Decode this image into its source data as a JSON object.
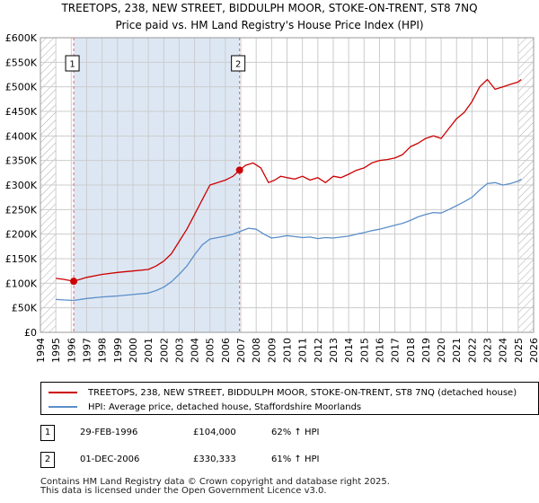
{
  "title": {
    "line1": "TREETOPS, 238, NEW STREET, BIDDULPH MOOR, STOKE-ON-TRENT, ST8 7NQ",
    "line2": "Price paid vs. HM Land Registry's House Price Index (HPI)"
  },
  "colors": {
    "property": "#cc0000",
    "hpi": "#5b8fc9",
    "shade": "#dde7f4",
    "grid": "#cccccc",
    "vline": "#e06666",
    "hatch": "#aaaaaa"
  },
  "chart_data": {
    "type": "line",
    "title": "Price paid vs. HM Land Registry's House Price Index (HPI)",
    "xlabel": "",
    "ylabel": "",
    "xlim": [
      1994,
      2026
    ],
    "ylim": [
      0,
      600000
    ],
    "x_ticks": [
      1994,
      1995,
      1996,
      1997,
      1998,
      1999,
      2000,
      2001,
      2002,
      2003,
      2004,
      2005,
      2006,
      2007,
      2008,
      2009,
      2010,
      2011,
      2012,
      2013,
      2014,
      2015,
      2016,
      2017,
      2018,
      2019,
      2020,
      2021,
      2022,
      2023,
      2024,
      2025,
      2026
    ],
    "y_ticks": [
      0,
      50000,
      100000,
      150000,
      200000,
      250000,
      300000,
      350000,
      400000,
      450000,
      500000,
      550000,
      600000
    ],
    "y_tick_labels": [
      "£0",
      "£50K",
      "£100K",
      "£150K",
      "£200K",
      "£250K",
      "£300K",
      "£350K",
      "£400K",
      "£450K",
      "£500K",
      "£550K",
      "£600K"
    ],
    "grid": true,
    "shaded_range": [
      1996.16,
      2006.92
    ],
    "hatched_ranges": [
      [
        1994,
        1995
      ],
      [
        2025,
        2026
      ]
    ],
    "series": [
      {
        "name": "TREETOPS, 238, NEW STREET, BIDDULPH MOOR, STOKE-ON-TRENT, ST8 7NQ (detached house)",
        "x": [
          1995.0,
          1995.5,
          1996.16,
          1997,
          1998,
          1999,
          2000,
          2001,
          2001.5,
          2002,
          2002.5,
          2003,
          2003.5,
          2004,
          2004.5,
          2005,
          2005.5,
          2006,
          2006.5,
          2006.92,
          2007.3,
          2007.8,
          2008.3,
          2008.8,
          2009.2,
          2009.6,
          2010,
          2010.5,
          2011,
          2011.5,
          2012,
          2012.5,
          2013,
          2013.5,
          2014,
          2014.5,
          2015,
          2015.5,
          2016,
          2016.5,
          2017,
          2017.5,
          2018,
          2018.5,
          2019,
          2019.5,
          2020,
          2020.5,
          2021,
          2021.5,
          2022,
          2022.5,
          2023,
          2023.5,
          2024,
          2024.5,
          2025.0,
          2025.2
        ],
        "values": [
          110000,
          108000,
          104000,
          112000,
          118000,
          122000,
          125000,
          128000,
          135000,
          145000,
          160000,
          185000,
          210000,
          240000,
          270000,
          300000,
          305000,
          310000,
          318000,
          330333,
          340000,
          345000,
          335000,
          305000,
          310000,
          318000,
          315000,
          312000,
          318000,
          310000,
          315000,
          305000,
          318000,
          315000,
          322000,
          330000,
          335000,
          345000,
          350000,
          352000,
          355000,
          362000,
          378000,
          385000,
          395000,
          400000,
          395000,
          415000,
          435000,
          448000,
          470000,
          500000,
          515000,
          495000,
          500000,
          505000,
          510000,
          515000
        ]
      },
      {
        "name": "HPI: Average price, detached house, Staffordshire Moorlands",
        "x": [
          1995.0,
          1995.5,
          1996.16,
          1997,
          1998,
          1999,
          2000,
          2001,
          2001.5,
          2002,
          2002.5,
          2003,
          2003.5,
          2004,
          2004.5,
          2005,
          2005.5,
          2006,
          2006.5,
          2006.92,
          2007.5,
          2008,
          2008.5,
          2009,
          2009.5,
          2010,
          2010.5,
          2011,
          2011.5,
          2012,
          2012.5,
          2013,
          2013.5,
          2014,
          2014.5,
          2015,
          2015.5,
          2016,
          2016.5,
          2017,
          2017.5,
          2018,
          2018.5,
          2019,
          2019.5,
          2020,
          2020.5,
          2021,
          2021.5,
          2022,
          2022.5,
          2023,
          2023.5,
          2024,
          2024.5,
          2025.0,
          2025.2
        ],
        "values": [
          67000,
          66000,
          65000,
          69000,
          72000,
          74000,
          77000,
          80000,
          85000,
          92000,
          103000,
          118000,
          135000,
          158000,
          178000,
          190000,
          193000,
          196000,
          200000,
          205000,
          212000,
          210000,
          200000,
          192000,
          194000,
          197000,
          195000,
          193000,
          194000,
          191000,
          193000,
          192000,
          194000,
          196000,
          200000,
          203000,
          207000,
          210000,
          214000,
          218000,
          222000,
          228000,
          235000,
          240000,
          244000,
          243000,
          250000,
          258000,
          266000,
          275000,
          290000,
          303000,
          305000,
          300000,
          303000,
          308000,
          312000
        ]
      }
    ],
    "sales": [
      {
        "marker": "1",
        "x": 1996.16,
        "y": 104000
      },
      {
        "marker": "2",
        "x": 2006.92,
        "y": 330333
      }
    ]
  },
  "legend": {
    "property_label": "TREETOPS, 238, NEW STREET, BIDDULPH MOOR, STOKE-ON-TRENT, ST8 7NQ (detached house)",
    "hpi_label": "HPI: Average price, detached house, Staffordshire Moorlands"
  },
  "sales_table": [
    {
      "marker": "1",
      "date": "29-FEB-1996",
      "price": "£104,000",
      "hpi_change": "62% ↑ HPI"
    },
    {
      "marker": "2",
      "date": "01-DEC-2006",
      "price": "£330,333",
      "hpi_change": "61% ↑ HPI"
    }
  ],
  "footer": {
    "line1": "Contains HM Land Registry data © Crown copyright and database right 2025.",
    "line2": "This data is licensed under the Open Government Licence v3.0."
  }
}
